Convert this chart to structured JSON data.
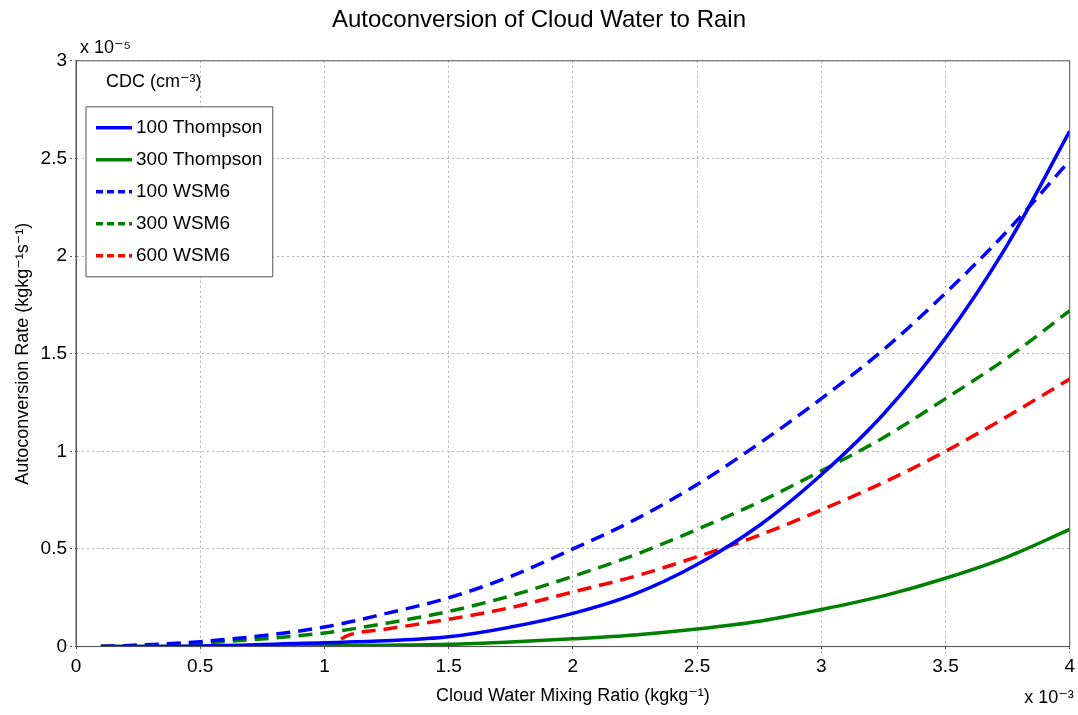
{
  "chart_data": {
    "type": "line",
    "title": "Autoconversion of Cloud Water to Rain",
    "xlabel": "Cloud Water Mixing Ratio (kgkg⁻¹)",
    "ylabel": "Autoconversion Rate (kgkg⁻¹s⁻¹)",
    "legend_title": "CDC (cm⁻³)",
    "annotations": [
      "x 10⁻⁵",
      "x 10⁻³"
    ],
    "x": [
      0.1,
      0.5,
      1,
      1.25,
      1.5,
      1.75,
      2,
      2.25,
      2.5,
      2.75,
      3,
      3.25,
      3.5,
      3.75,
      4
    ],
    "series": [
      {
        "name": "100 Thompson",
        "color": "#0000ff",
        "line_style": "solid",
        "values": [
          0,
          0.003,
          0.02,
          0.03,
          0.05,
          0.1,
          0.17,
          0.27,
          0.42,
          0.62,
          0.88,
          1.19,
          1.58,
          2.06,
          2.64
        ]
      },
      {
        "name": "300 Thompson",
        "color": "#008000",
        "line_style": "solid",
        "values": [
          0,
          0,
          0.004,
          0.007,
          0.012,
          0.024,
          0.04,
          0.06,
          0.09,
          0.13,
          0.19,
          0.26,
          0.35,
          0.46,
          0.6
        ]
      },
      {
        "name": "100 WSM6",
        "color": "#0000ff",
        "line_style": "dashed",
        "values": [
          0,
          0.025,
          0.1,
          0.17,
          0.25,
          0.36,
          0.5,
          0.65,
          0.83,
          1.04,
          1.27,
          1.52,
          1.81,
          2.13,
          2.49
        ]
      },
      {
        "name": "300 WSM6",
        "color": "#008000",
        "line_style": "dashed",
        "values": [
          0,
          0.018,
          0.07,
          0.12,
          0.18,
          0.26,
          0.36,
          0.47,
          0.6,
          0.74,
          0.9,
          1.07,
          1.27,
          1.48,
          1.72
        ]
      },
      {
        "name": "600 WSM6",
        "color": "#ff0000",
        "line_style": "dashed",
        "x": [
          0.1,
          0.5,
          1,
          1.1,
          1.25,
          1.5,
          1.75,
          2,
          2.25,
          2.5,
          2.75,
          3,
          3.25,
          3.5,
          3.75,
          4
        ],
        "values": [
          0,
          0,
          0,
          0.06,
          0.09,
          0.14,
          0.2,
          0.28,
          0.36,
          0.46,
          0.57,
          0.7,
          0.84,
          1.0,
          1.18,
          1.37
        ]
      }
    ],
    "xlim": [
      0,
      4
    ],
    "xticks": [
      0,
      0.5,
      1,
      1.5,
      2,
      2.5,
      3,
      3.5,
      4
    ],
    "ylim": [
      0,
      3
    ],
    "yticks": [
      0,
      0.5,
      1,
      1.5,
      2,
      2.5,
      3
    ],
    "grid": true,
    "legend": "top left",
    "marker": "none"
  }
}
